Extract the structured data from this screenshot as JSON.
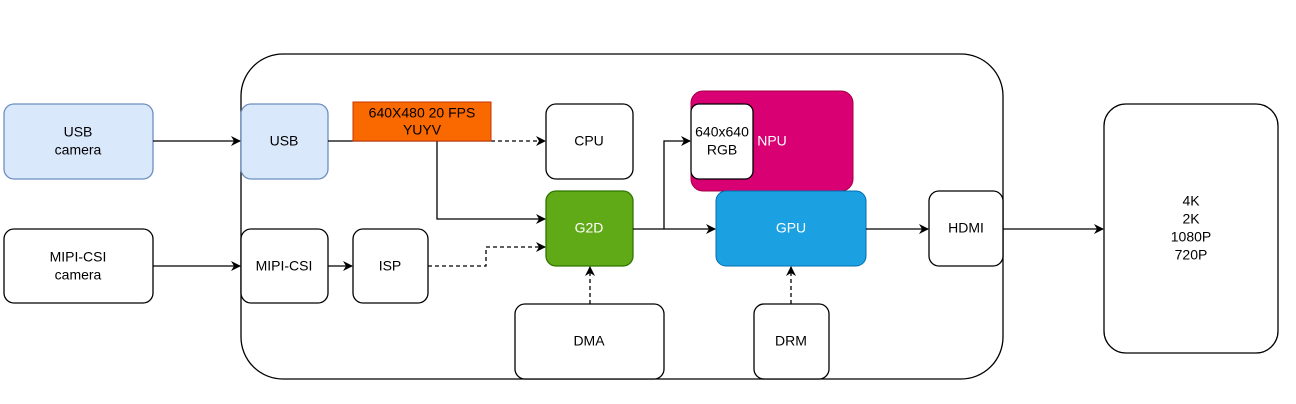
{
  "colors": {
    "usb_fill": "#dae8fc",
    "usb_stroke": "#6c8ebf",
    "format_label": "#fa6800",
    "g2d": "#60a917",
    "npu": "#d80073",
    "gpu": "#1ba1e2"
  },
  "nodes": {
    "usb_camera": [
      "USB",
      "camera"
    ],
    "mipi_camera": [
      "MIPI-CSI",
      "camera"
    ],
    "usb": "USB",
    "mipi_csi": "MIPI-CSI",
    "format": [
      "640X480 20 FPS",
      "YUYV"
    ],
    "isp": "ISP",
    "cpu": "CPU",
    "g2d": "G2D",
    "npu": "NPU",
    "npu_input": [
      "640x640",
      "RGB"
    ],
    "gpu": "GPU",
    "hdmi": "HDMI",
    "dma": "DMA",
    "drm": "DRM",
    "display": [
      "4K",
      "2K",
      "1080P",
      "720P"
    ]
  }
}
